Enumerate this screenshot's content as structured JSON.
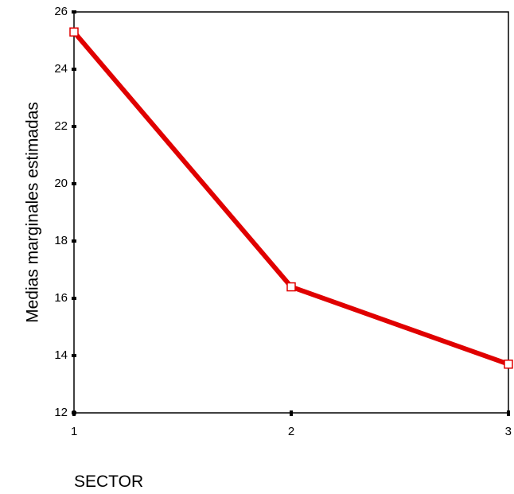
{
  "chart_data": {
    "type": "line",
    "title": "",
    "xlabel": "SECTOR",
    "ylabel": "Medias marginales estimadas",
    "x": [
      1,
      2,
      3
    ],
    "xticks": [
      1,
      2,
      3
    ],
    "xlim": [
      1,
      3
    ],
    "yticks": [
      12,
      14,
      16,
      18,
      20,
      22,
      24,
      26
    ],
    "ylim": [
      12,
      26
    ],
    "grid": false,
    "legend": "none",
    "series": [
      {
        "values": [
          25.3,
          16.4,
          13.7
        ],
        "color": "#e00000",
        "marker": "square-open"
      }
    ]
  }
}
